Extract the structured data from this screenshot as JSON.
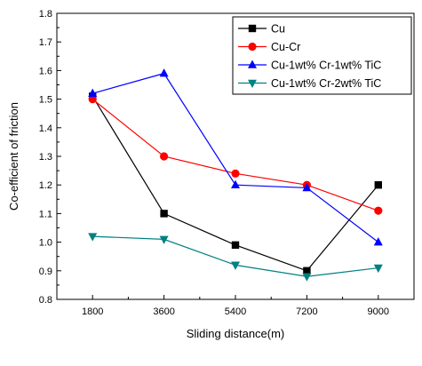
{
  "chart_data": {
    "type": "line",
    "title": "",
    "xlabel": "Sliding distance(m)",
    "ylabel": "Co-efficient of friction",
    "x": [
      1800,
      3600,
      5400,
      7200,
      9000
    ],
    "x_tick_labels": [
      "1800",
      "3600",
      "5400",
      "7200",
      "9000"
    ],
    "xlim": [
      900,
      9900
    ],
    "ylim": [
      0.8,
      1.8
    ],
    "y_ticks": [
      0.8,
      0.9,
      1.0,
      1.1,
      1.2,
      1.3,
      1.4,
      1.5,
      1.6,
      1.7,
      1.8
    ],
    "y_tick_labels": [
      "0.8",
      "0.9",
      "1.0",
      "1.1",
      "1.2",
      "1.3",
      "1.4",
      "1.5",
      "1.6",
      "1.7",
      "1.8"
    ],
    "grid": false,
    "legend_position": "top-right",
    "series": [
      {
        "name": "Cu",
        "color": "#000000",
        "marker": "square",
        "values": [
          1.51,
          1.1,
          0.99,
          0.9,
          1.2
        ]
      },
      {
        "name": "Cu-Cr",
        "color": "#ff0000",
        "marker": "circle",
        "values": [
          1.5,
          1.3,
          1.24,
          1.2,
          1.11
        ]
      },
      {
        "name": "Cu-1wt% Cr-1wt% TiC",
        "color": "#0000ff",
        "marker": "triangle-up",
        "values": [
          1.52,
          1.59,
          1.2,
          1.19,
          1.0
        ]
      },
      {
        "name": "Cu-1wt% Cr-2wt% TiC",
        "color": "#008080",
        "marker": "triangle-down",
        "values": [
          1.02,
          1.01,
          0.92,
          0.88,
          0.91
        ]
      }
    ]
  }
}
